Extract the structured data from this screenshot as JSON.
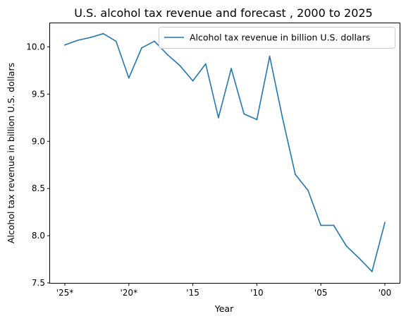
{
  "chart_data": {
    "type": "line",
    "title": "U.S. alcohol tax revenue and forecast , 2000 to 2025",
    "xlabel": "Year",
    "ylabel": "Alcohol tax revenue in billion U.S. dollars",
    "x_reversed": true,
    "x": [
      "'25*",
      "'24*",
      "'23*",
      "'22*",
      "'21*",
      "'20*",
      "'19",
      "'18",
      "'17",
      "'16",
      "'15",
      "'14",
      "'13",
      "'12",
      "'11",
      "'10",
      "'09",
      "'08",
      "'07",
      "'06",
      "'05",
      "'04",
      "'03",
      "'02",
      "'01",
      "'00"
    ],
    "xticks": [
      "'25*",
      "'20*",
      "'15",
      "'10",
      "'05",
      "'00"
    ],
    "ylim": [
      7.5,
      10.25
    ],
    "yticks": [
      "7.5",
      "8.0",
      "8.5",
      "9.0",
      "9.5",
      "10.0"
    ],
    "series": [
      {
        "name": "Alcohol tax revenue in billion U.S. dollars",
        "color": "#1f77b4",
        "values": [
          10.02,
          10.07,
          10.1,
          10.14,
          10.06,
          9.67,
          9.99,
          10.06,
          9.92,
          9.8,
          9.64,
          9.82,
          9.25,
          9.77,
          9.29,
          9.23,
          9.9,
          9.25,
          8.65,
          8.48,
          8.11,
          8.11,
          7.89,
          7.76,
          7.62,
          8.14
        ]
      }
    ],
    "legend_position": "top-right",
    "grid": false
  }
}
